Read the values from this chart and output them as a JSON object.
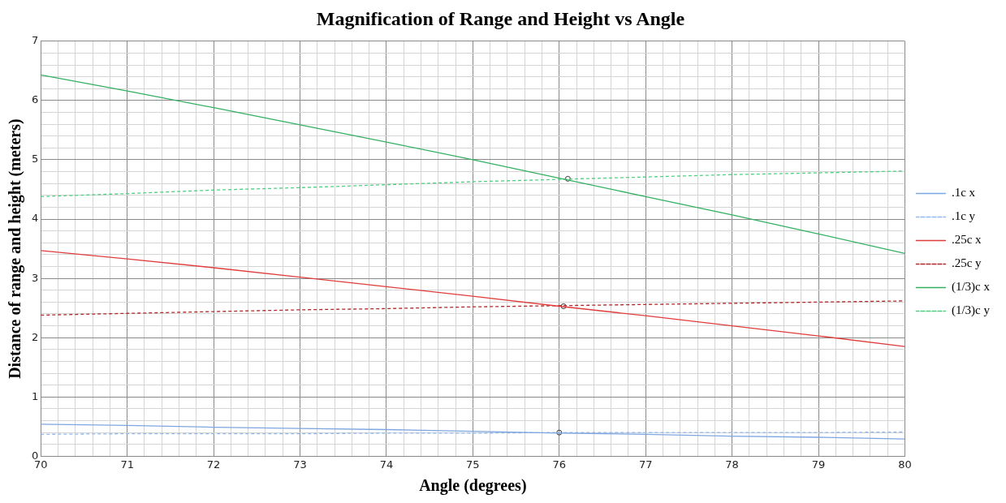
{
  "chart_data": {
    "type": "line",
    "title": "Magnification of Range and Height vs Angle",
    "xlabel": "Angle (degrees)",
    "ylabel": "Distance of range and height (meters)",
    "x": [
      70,
      71,
      72,
      73,
      74,
      75,
      76,
      77,
      78,
      79,
      80
    ],
    "xlim": [
      70,
      80
    ],
    "ylim": [
      0,
      7
    ],
    "xticks": [
      70,
      {
        "value": 70.2,
        "label": null
      },
      {
        "value": 70.4,
        "label": null
      },
      {
        "value": 70.6,
        "label": null
      },
      {
        "value": 70.8,
        "label": null
      },
      71,
      {
        "value": 71.2,
        "label": null
      },
      {
        "value": 71.4,
        "label": null
      },
      {
        "value": 71.6,
        "label": null
      },
      {
        "value": 71.8,
        "label": null
      },
      72,
      {
        "value": 72.2,
        "label": null
      },
      {
        "value": 72.4,
        "label": null
      },
      {
        "value": 72.6,
        "label": null
      },
      {
        "value": 72.8,
        "label": null
      },
      73,
      {
        "value": 73.2,
        "label": null
      },
      {
        "value": 73.4,
        "label": null
      },
      {
        "value": 73.6,
        "label": null
      },
      {
        "value": 73.8,
        "label": null
      },
      74,
      {
        "value": 74.2,
        "label": null
      },
      {
        "value": 74.4,
        "label": null
      },
      {
        "value": 74.6,
        "label": null
      },
      {
        "value": 74.8,
        "label": null
      },
      75,
      {
        "value": 75.2,
        "label": null
      },
      {
        "value": 75.4,
        "label": null
      },
      {
        "value": 75.6,
        "label": null
      },
      {
        "value": 75.8,
        "label": null
      },
      76,
      {
        "value": 76.2,
        "label": null
      },
      {
        "value": 76.4,
        "label": null
      },
      {
        "value": 76.6,
        "label": null
      },
      {
        "value": 76.8,
        "label": null
      },
      77,
      {
        "value": 77.2,
        "label": null
      },
      {
        "value": 77.4,
        "label": null
      },
      {
        "value": 77.6,
        "label": null
      },
      {
        "value": 77.8,
        "label": null
      },
      78,
      {
        "value": 78.2,
        "label": null
      },
      {
        "value": 78.4,
        "label": null
      },
      {
        "value": 78.6,
        "label": null
      },
      {
        "value": 78.8,
        "label": null
      },
      79,
      {
        "value": 79.2,
        "label": null
      },
      {
        "value": 79.4,
        "label": null
      },
      {
        "value": 79.6,
        "label": null
      },
      {
        "value": 79.8,
        "label": null
      },
      80
    ],
    "yticks": [
      0,
      {
        "value": 0.2,
        "label": null
      },
      {
        "value": 0.4,
        "label": null
      },
      {
        "value": 0.6,
        "label": null
      },
      {
        "value": 0.8,
        "label": null
      },
      1,
      {
        "value": 1.2,
        "label": null
      },
      {
        "value": 1.4,
        "label": null
      },
      {
        "value": 1.6,
        "label": null
      },
      {
        "value": 1.8,
        "label": null
      },
      2,
      {
        "value": 2.2,
        "label": null
      },
      {
        "value": 2.4,
        "label": null
      },
      {
        "value": 2.6,
        "label": null
      },
      {
        "value": 2.8,
        "label": null
      },
      3,
      {
        "value": 3.2,
        "label": null
      },
      {
        "value": 3.4,
        "label": null
      },
      {
        "value": 3.6,
        "label": null
      },
      {
        "value": 3.8,
        "label": null
      },
      4,
      {
        "value": 4.2,
        "label": null
      },
      {
        "value": 4.4,
        "label": null
      },
      {
        "value": 4.6,
        "label": null
      },
      {
        "value": 4.8,
        "label": null
      },
      5,
      {
        "value": 5.2,
        "label": null
      },
      {
        "value": 5.4,
        "label": null
      },
      {
        "value": 5.6,
        "label": null
      },
      {
        "value": 5.8,
        "label": null
      },
      6,
      {
        "value": 6.2,
        "label": null
      },
      {
        "value": 6.4,
        "label": null
      },
      {
        "value": 6.6,
        "label": null
      },
      {
        "value": 6.8,
        "label": null
      },
      7
    ],
    "grid": true,
    "legend": "right",
    "marker": "none",
    "series": [
      {
        "name": ".1c x",
        "color": "#7ea6e0",
        "line_style": "solid",
        "values": [
          0.54,
          0.52,
          0.49,
          0.47,
          0.45,
          0.42,
          0.39,
          0.37,
          0.34,
          0.32,
          0.29
        ]
      },
      {
        "name": ".1c y",
        "color": "#8fb8ee",
        "line_style": "dashed",
        "values": [
          0.37,
          0.38,
          0.38,
          0.38,
          0.39,
          0.39,
          0.4,
          0.4,
          0.4,
          0.4,
          0.41
        ]
      },
      {
        "name": ".25c x",
        "color": "#e03c3c",
        "line_style": "solid",
        "values": [
          3.47,
          3.33,
          3.18,
          3.02,
          2.86,
          2.7,
          2.53,
          2.37,
          2.2,
          2.03,
          1.85
        ]
      },
      {
        "name": ".25c y",
        "color": "#b02828",
        "line_style": "dashed",
        "values": [
          2.38,
          2.41,
          2.44,
          2.47,
          2.49,
          2.52,
          2.54,
          2.56,
          2.58,
          2.6,
          2.62
        ]
      },
      {
        "name": "(1/3)c x",
        "color": "#33b060",
        "line_style": "solid",
        "values": [
          6.43,
          6.16,
          5.88,
          5.59,
          5.3,
          5.0,
          4.69,
          4.38,
          4.07,
          3.75,
          3.42
        ]
      },
      {
        "name": "(1/3)c y",
        "color": "#4fcf80",
        "line_style": "dashed",
        "values": [
          4.38,
          4.43,
          4.49,
          4.53,
          4.58,
          4.63,
          4.67,
          4.71,
          4.75,
          4.78,
          4.81
        ]
      },
      {
        "type": "scatter",
        "color": "#333333",
        "marker": "circle",
        "x": [
          76,
          76.05,
          76.1
        ],
        "values": [
          0.4,
          2.53,
          4.68
        ]
      }
    ]
  }
}
